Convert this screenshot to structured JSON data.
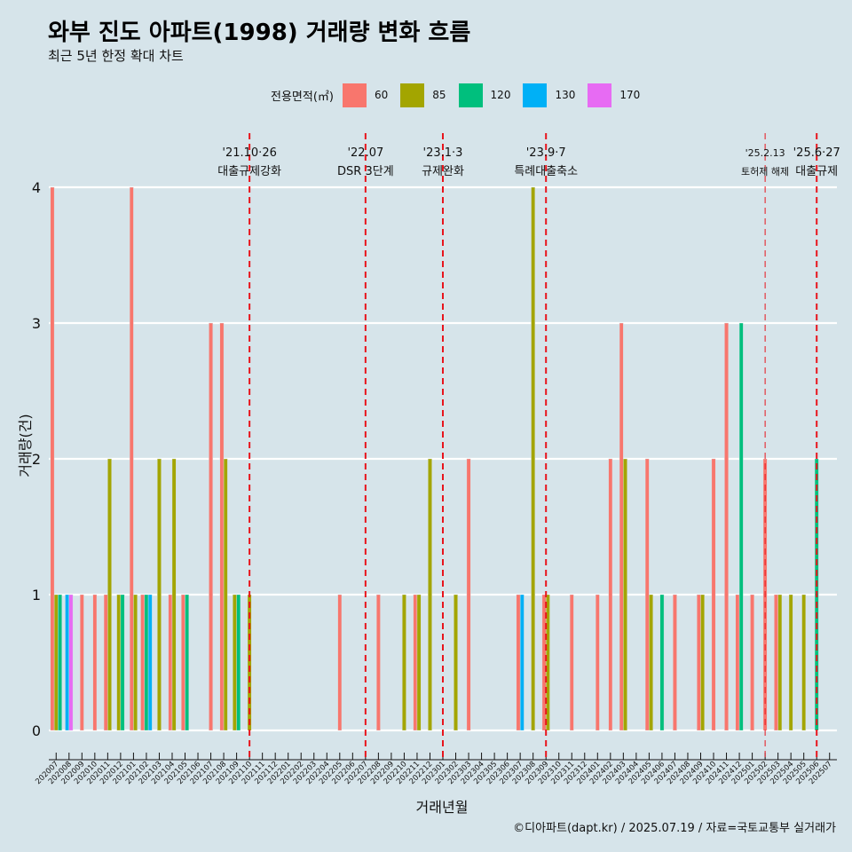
{
  "title": "와부 진도 아파트(1998) 거래량 변화 흐름",
  "subtitle": "최근 5년 한정 확대 차트",
  "caption": "©디아파트(dapt.kr) / 2025.07.19 / 자료=국토교통부 실거래가",
  "colors": {
    "background": "#d6e4ea",
    "grid": "#ffffff",
    "event_line": "#e8141c"
  },
  "chart_data": {
    "type": "bar",
    "xlabel": "거래년월",
    "ylabel": "거래량(건)",
    "ylim": [
      0,
      4
    ],
    "y_ticks": [
      "0",
      "1",
      "2",
      "3",
      "4"
    ],
    "legend_title": "전용면적(㎡)",
    "legend_position": "top",
    "grid": true,
    "categories": [
      "202007",
      "202008",
      "202009",
      "202010",
      "202011",
      "202012",
      "202101",
      "202102",
      "202103",
      "202104",
      "202105",
      "202106",
      "202107",
      "202108",
      "202109",
      "202110",
      "202111",
      "202112",
      "202201",
      "202202",
      "202203",
      "202204",
      "202205",
      "202206",
      "202207",
      "202208",
      "202209",
      "202210",
      "202211",
      "202212",
      "202301",
      "202302",
      "202303",
      "202304",
      "202305",
      "202306",
      "202307",
      "202308",
      "202309",
      "202310",
      "202311",
      "202312",
      "202401",
      "202402",
      "202403",
      "202404",
      "202405",
      "202406",
      "202407",
      "202408",
      "202409",
      "202410",
      "202411",
      "202412",
      "202501",
      "202502",
      "202503",
      "202504",
      "202505",
      "202506",
      "202507"
    ],
    "series": [
      {
        "name": "60",
        "color": "#f8766d",
        "values": [
          4,
          0,
          1,
          1,
          1,
          0,
          4,
          1,
          0,
          1,
          1,
          0,
          3,
          3,
          0,
          0,
          0,
          0,
          0,
          0,
          0,
          0,
          1,
          0,
          0,
          1,
          0,
          0,
          1,
          0,
          0,
          0,
          2,
          0,
          0,
          0,
          1,
          0,
          1,
          0,
          1,
          0,
          1,
          2,
          3,
          0,
          2,
          0,
          1,
          0,
          1,
          2,
          3,
          1,
          1,
          2,
          1,
          0,
          0,
          0,
          0
        ]
      },
      {
        "name": "85",
        "color": "#a3a500",
        "values": [
          1,
          0,
          0,
          0,
          2,
          1,
          1,
          0,
          2,
          2,
          0,
          0,
          0,
          2,
          1,
          1,
          0,
          0,
          0,
          0,
          0,
          0,
          0,
          0,
          0,
          0,
          0,
          1,
          1,
          2,
          0,
          1,
          0,
          0,
          0,
          0,
          0,
          4,
          1,
          0,
          0,
          0,
          0,
          0,
          2,
          0,
          1,
          0,
          0,
          0,
          1,
          0,
          0,
          0,
          0,
          0,
          1,
          1,
          1,
          0,
          0
        ]
      },
      {
        "name": "120",
        "color": "#00bf7d",
        "values": [
          1,
          0,
          0,
          0,
          0,
          1,
          0,
          1,
          0,
          0,
          1,
          0,
          0,
          0,
          1,
          0,
          0,
          0,
          0,
          0,
          0,
          0,
          0,
          0,
          0,
          0,
          0,
          0,
          0,
          0,
          0,
          0,
          0,
          0,
          0,
          0,
          0,
          0,
          0,
          0,
          0,
          0,
          0,
          0,
          0,
          0,
          0,
          1,
          0,
          0,
          0,
          0,
          0,
          3,
          0,
          0,
          0,
          0,
          0,
          2,
          0
        ]
      },
      {
        "name": "130",
        "color": "#00b0f6",
        "values": [
          0,
          1,
          0,
          0,
          0,
          0,
          0,
          1,
          0,
          0,
          0,
          0,
          0,
          0,
          0,
          0,
          0,
          0,
          0,
          0,
          0,
          0,
          0,
          0,
          0,
          0,
          0,
          0,
          0,
          0,
          0,
          0,
          0,
          0,
          0,
          0,
          1,
          0,
          0,
          0,
          0,
          0,
          0,
          0,
          0,
          0,
          0,
          0,
          0,
          0,
          0,
          0,
          0,
          0,
          0,
          0,
          0,
          0,
          0,
          0,
          0
        ]
      },
      {
        "name": "170",
        "color": "#e76bf3",
        "values": [
          0,
          1,
          0,
          0,
          0,
          0,
          0,
          0,
          0,
          0,
          0,
          0,
          0,
          0,
          0,
          0,
          0,
          0,
          0,
          0,
          0,
          0,
          0,
          0,
          0,
          0,
          0,
          0,
          0,
          0,
          0,
          0,
          0,
          0,
          0,
          0,
          0,
          0,
          0,
          0,
          0,
          0,
          0,
          0,
          0,
          0,
          0,
          0,
          0,
          0,
          0,
          0,
          0,
          0,
          0,
          0,
          0,
          0,
          0,
          0,
          0
        ]
      }
    ],
    "annotations": [
      {
        "x": "202110",
        "date": "'21.10·26",
        "label": "대출규제강화"
      },
      {
        "x": "202207",
        "date": "'22.07",
        "label": "DSR 3단계"
      },
      {
        "x": "202301",
        "date": "'23.1·3",
        "label": "규제완화"
      },
      {
        "x": "202309",
        "date": "'23.9·7",
        "label": "특례대출축소"
      },
      {
        "x": "202502",
        "date": "'25.2.13",
        "label": "토허제 해제"
      },
      {
        "x": "202506",
        "date": "'25.6·27",
        "label": "대출규제"
      }
    ]
  }
}
